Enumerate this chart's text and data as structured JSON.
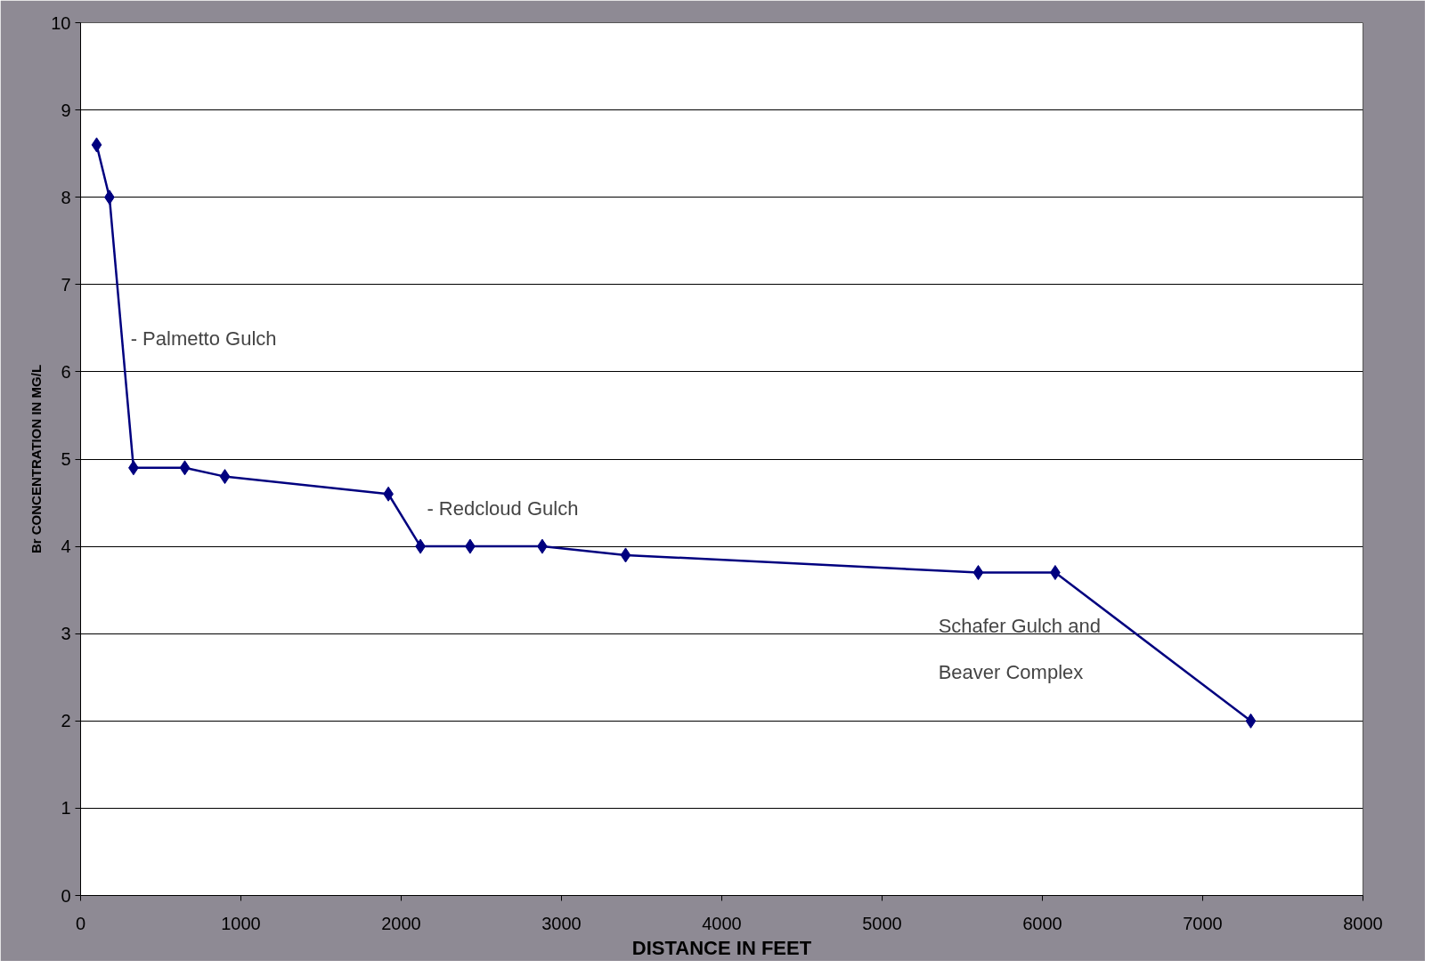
{
  "chart_data": {
    "type": "line",
    "xlabel": "DISTANCE IN FEET",
    "ylabel": "Br CONCENTRATION IN MG/L",
    "x": [
      100,
      180,
      330,
      650,
      900,
      1920,
      2120,
      2430,
      2880,
      3400,
      5600,
      6080,
      7300
    ],
    "series": [
      {
        "color": "#00007f",
        "values": [
          8.6,
          8.0,
          4.9,
          4.9,
          4.8,
          4.6,
          4.0,
          4.0,
          4.0,
          3.9,
          3.7,
          3.7,
          2.0
        ]
      }
    ],
    "xlim": [
      0,
      8000
    ],
    "xticks": [
      0,
      1000,
      2000,
      3000,
      4000,
      5000,
      6000,
      7000,
      8000
    ],
    "ylim": [
      0,
      10
    ],
    "yticks": [
      0,
      1,
      2,
      3,
      4,
      5,
      6,
      7,
      8,
      9,
      10
    ],
    "grid": "y",
    "marker": "diamond",
    "line_style": "solid",
    "annotations": [
      "- Palmetto Gulch",
      "- Redcloud Gulch",
      "Schafer Gulch and\nBeaver Complex"
    ]
  }
}
